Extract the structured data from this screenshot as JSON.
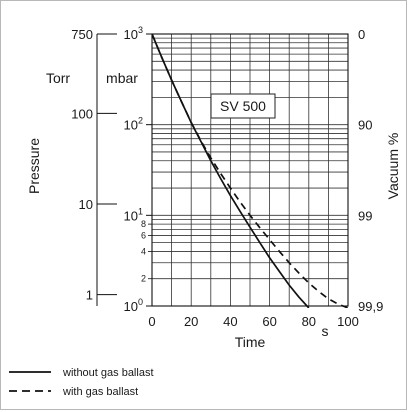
{
  "chart_data": {
    "type": "line",
    "title": "",
    "annotation": "SV 500",
    "xlabel": "Time",
    "x_unit": "s",
    "ylabel": "Pressure",
    "y_scale": "log",
    "xlim": [
      0,
      100
    ],
    "ylim": [
      1,
      1000
    ],
    "grid": true,
    "x_ticks": [
      "0",
      "20",
      "40",
      "60",
      "80",
      "100"
    ],
    "mbar_axis": {
      "unit": "mbar",
      "major_ticks": [
        {
          "value": 1000,
          "base": "10",
          "exp": "3"
        },
        {
          "value": 100,
          "base": "10",
          "exp": "2"
        },
        {
          "value": 10,
          "base": "10",
          "exp": "1"
        },
        {
          "value": 1,
          "base": "10",
          "exp": "0"
        }
      ],
      "minor_ticks": [
        "8",
        "6",
        "4",
        "2"
      ]
    },
    "torr_axis": {
      "unit": "Torr",
      "ticks": [
        {
          "label": "750",
          "mbar": 1000
        },
        {
          "label": "100",
          "mbar": 133.3
        },
        {
          "label": "10",
          "mbar": 13.33
        },
        {
          "label": "1",
          "mbar": 1.333
        }
      ]
    },
    "vacuum_axis": {
      "label": "Vacuum %",
      "ticks": [
        {
          "label": "0",
          "mbar": 1000
        },
        {
          "label": "90",
          "mbar": 100
        },
        {
          "label": "99",
          "mbar": 10
        },
        {
          "label": "99,9",
          "mbar": 1
        }
      ]
    },
    "series": [
      {
        "name": "without gas ballast",
        "style": "solid",
        "x": [
          0,
          5,
          10,
          15,
          20,
          25,
          30,
          35,
          40,
          45,
          50,
          55,
          60,
          65,
          70,
          75,
          80
        ],
        "y": [
          1000,
          550,
          310,
          180,
          105,
          65,
          40,
          25.5,
          16.5,
          11,
          7.4,
          5,
          3.4,
          2.4,
          1.7,
          1.25,
          0.95
        ]
      },
      {
        "name": "with gas ballast",
        "style": "dashed",
        "x": [
          0,
          5,
          10,
          15,
          20,
          25,
          30,
          35,
          40,
          45,
          50,
          55,
          60,
          65,
          70,
          75,
          80,
          85,
          90,
          95,
          100
        ],
        "y": [
          1000,
          550,
          310,
          180,
          106,
          66,
          43,
          29,
          20,
          14,
          10,
          7.3,
          5.4,
          4,
          3,
          2.3,
          1.8,
          1.45,
          1.2,
          1.05,
          0.95
        ]
      }
    ]
  },
  "legend": {
    "items": [
      {
        "label": "without gas ballast",
        "style": "solid"
      },
      {
        "label": "with gas ballast",
        "style": "dashed"
      }
    ]
  }
}
